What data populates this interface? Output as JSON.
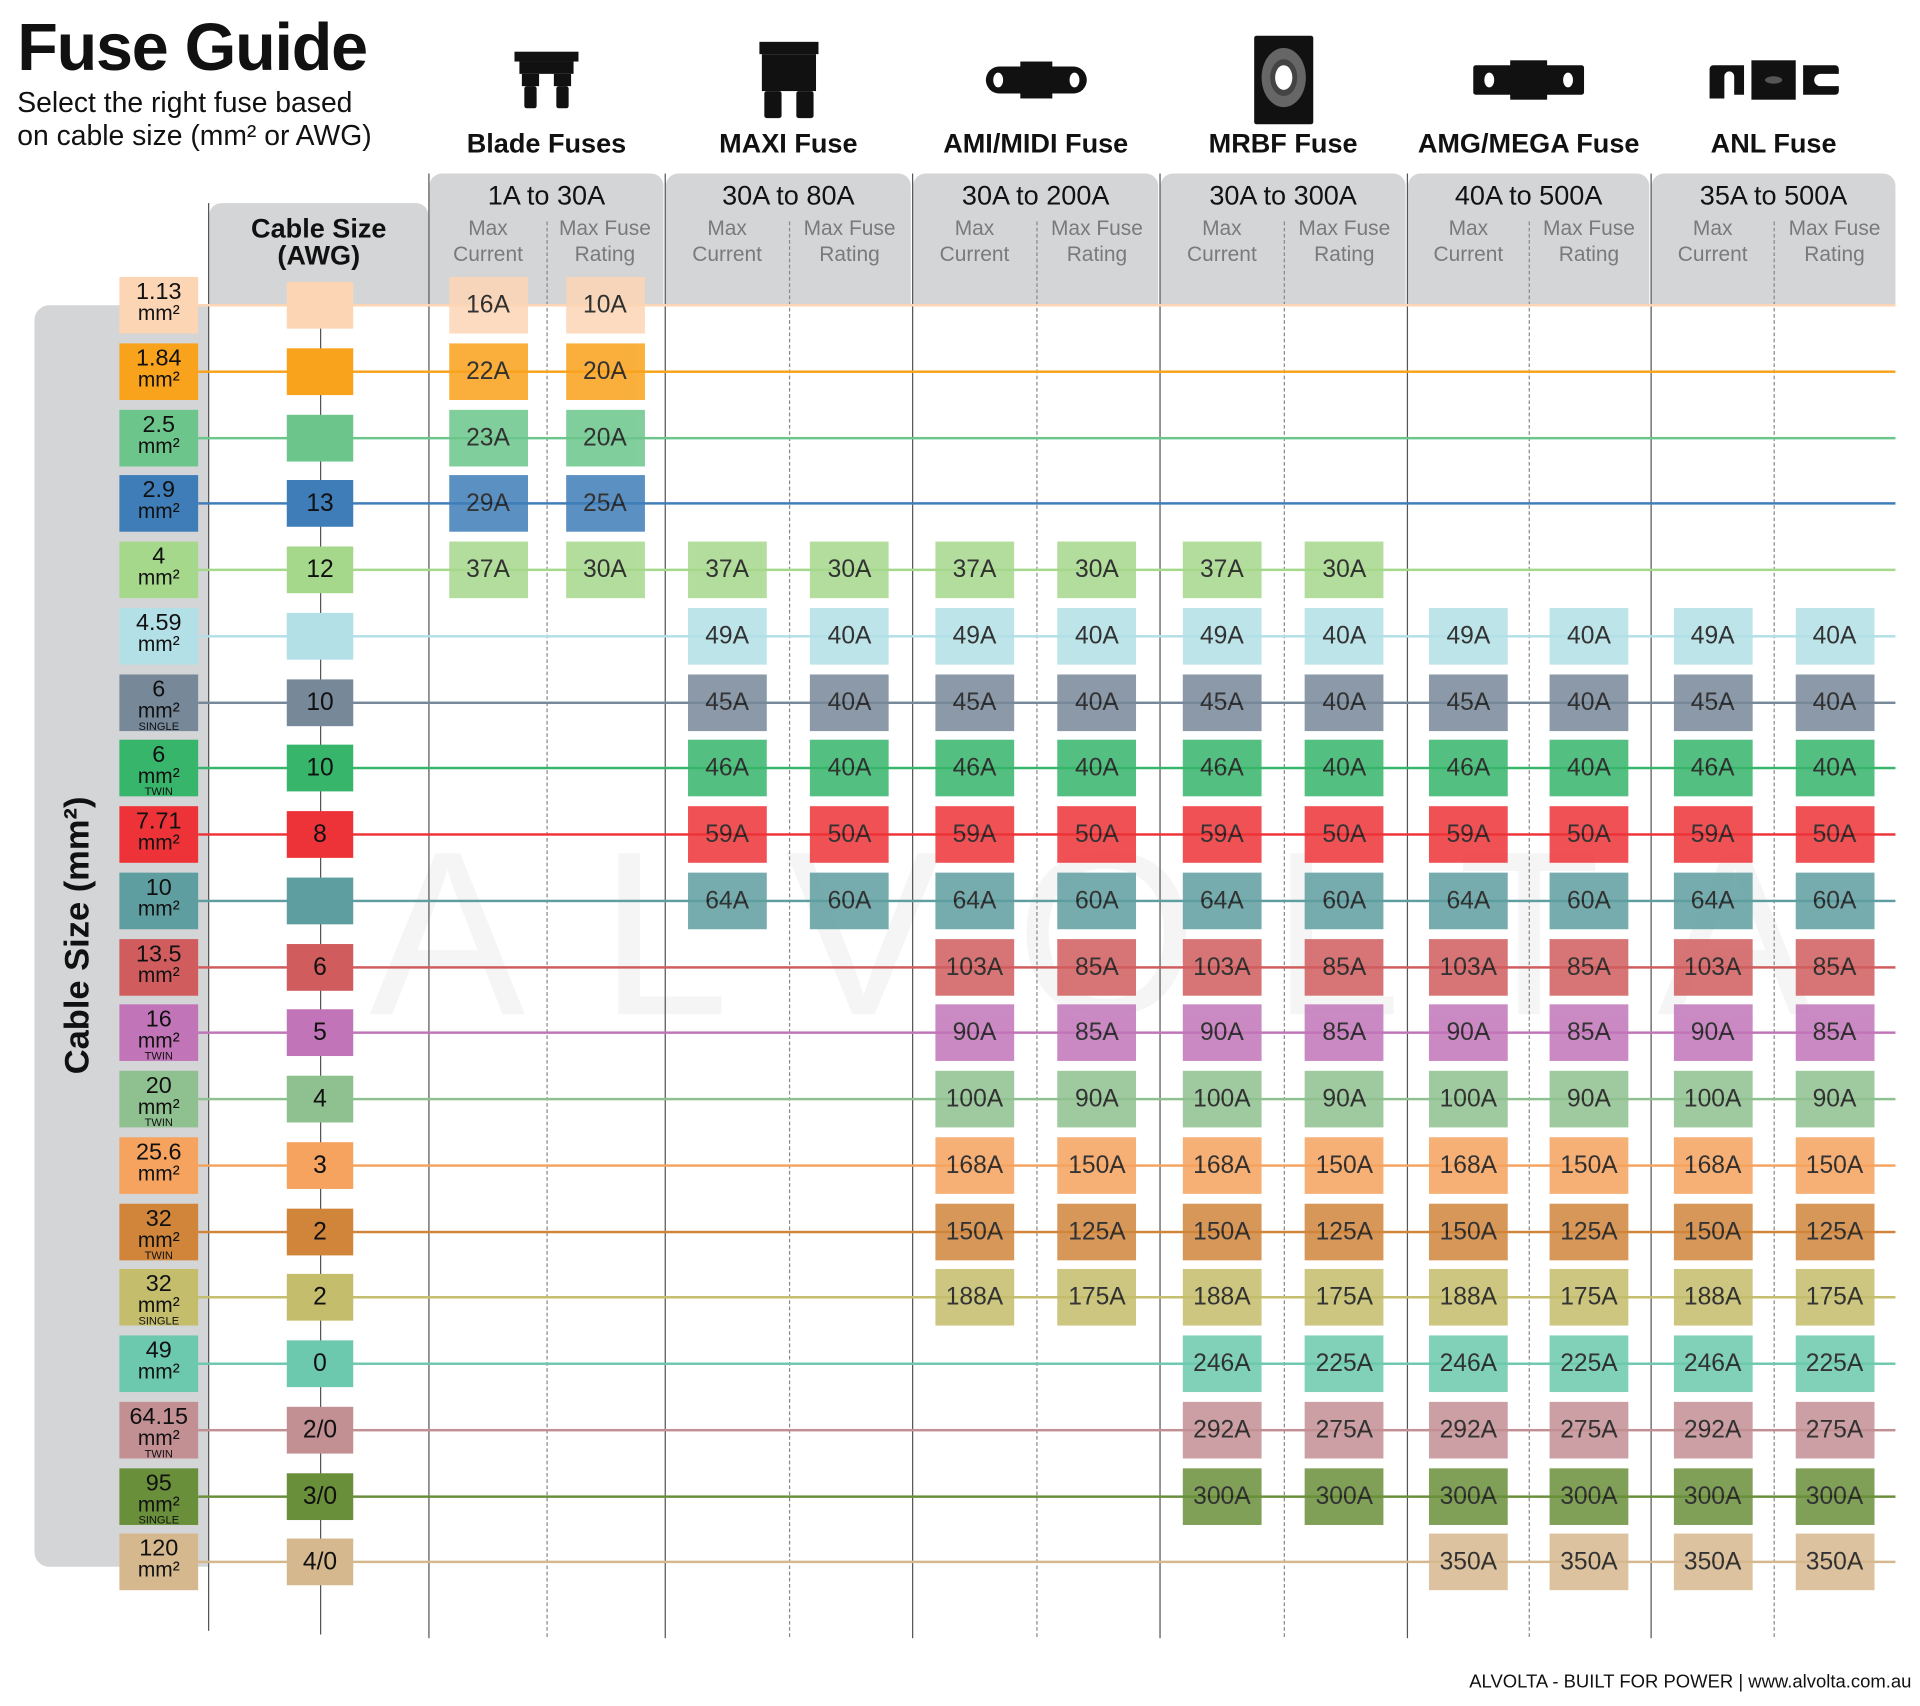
{
  "header": {
    "title": "Fuse Guide",
    "subtitle_line1": "Select the right fuse based",
    "subtitle_line2": "on cable size (mm² or AWG)"
  },
  "watermark": "ALVOLTA",
  "left_axis_label": "Cable Size (mm²)",
  "awg_header": {
    "line1": "Cable Size",
    "line2": "(AWG)"
  },
  "footer": "ALVOLTA - BUILT FOR POWER | www.alvolta.com.au",
  "chart_data": {
    "type": "table",
    "columns": [
      "Max Current",
      "Max Fuse Rating"
    ],
    "column_labels": {
      "current_1": "Max",
      "current_2": "Current",
      "rating_1": "Max Fuse",
      "rating_2": "Rating"
    },
    "groups": [
      {
        "name": "Blade Fuses",
        "range": "1A to 30A",
        "icon": "blade-fuse-icon"
      },
      {
        "name": "MAXI Fuse",
        "range": "30A to 80A",
        "icon": "maxi-fuse-icon"
      },
      {
        "name": "AMI/MIDI Fuse",
        "range": "30A to 200A",
        "icon": "midi-fuse-icon"
      },
      {
        "name": "MRBF Fuse",
        "range": "30A to 300A",
        "icon": "mrbf-fuse-icon"
      },
      {
        "name": "AMG/MEGA Fuse",
        "range": "40A to 500A",
        "icon": "mega-fuse-icon"
      },
      {
        "name": "ANL Fuse",
        "range": "35A to 500A",
        "icon": "anl-fuse-icon"
      }
    ],
    "unit_label": "mm²",
    "rows": [
      {
        "mm": "1.13",
        "note": "",
        "awg": "",
        "color": "#fcd5b5",
        "values": [
          [
            "16A",
            "10A"
          ],
          null,
          null,
          null,
          null,
          null
        ]
      },
      {
        "mm": "1.84",
        "note": "",
        "awg": "",
        "color": "#f9a21b",
        "values": [
          [
            "22A",
            "20A"
          ],
          null,
          null,
          null,
          null,
          null
        ]
      },
      {
        "mm": "2.5",
        "note": "",
        "awg": "",
        "color": "#6cc68c",
        "values": [
          [
            "23A",
            "20A"
          ],
          null,
          null,
          null,
          null,
          null
        ]
      },
      {
        "mm": "2.9",
        "note": "",
        "awg": "13",
        "color": "#3e7db8",
        "values": [
          [
            "29A",
            "25A"
          ],
          null,
          null,
          null,
          null,
          null
        ]
      },
      {
        "mm": "4",
        "note": "",
        "awg": "12",
        "color": "#a6d88c",
        "values": [
          [
            "37A",
            "30A"
          ],
          [
            "37A",
            "30A"
          ],
          [
            "37A",
            "30A"
          ],
          [
            "37A",
            "30A"
          ],
          null,
          null
        ]
      },
      {
        "mm": "4.59",
        "note": "",
        "awg": "",
        "color": "#b2e0e6",
        "values": [
          null,
          [
            "49A",
            "40A"
          ],
          [
            "49A",
            "40A"
          ],
          [
            "49A",
            "40A"
          ],
          [
            "49A",
            "40A"
          ],
          [
            "49A",
            "40A"
          ]
        ]
      },
      {
        "mm": "6",
        "note": "SINGLE",
        "awg": "10",
        "color": "#778899",
        "values": [
          null,
          [
            "45A",
            "40A"
          ],
          [
            "45A",
            "40A"
          ],
          [
            "45A",
            "40A"
          ],
          [
            "45A",
            "40A"
          ],
          [
            "45A",
            "40A"
          ]
        ]
      },
      {
        "mm": "6",
        "note": "TWIN",
        "awg": "10",
        "color": "#36b56b",
        "values": [
          null,
          [
            "46A",
            "40A"
          ],
          [
            "46A",
            "40A"
          ],
          [
            "46A",
            "40A"
          ],
          [
            "46A",
            "40A"
          ],
          [
            "46A",
            "40A"
          ]
        ]
      },
      {
        "mm": "7.71",
        "note": "",
        "awg": "8",
        "color": "#ee3338",
        "values": [
          null,
          [
            "59A",
            "50A"
          ],
          [
            "59A",
            "50A"
          ],
          [
            "59A",
            "50A"
          ],
          [
            "59A",
            "50A"
          ],
          [
            "59A",
            "50A"
          ]
        ]
      },
      {
        "mm": "10",
        "note": "",
        "awg": "",
        "color": "#5f9ea0",
        "values": [
          null,
          [
            "64A",
            "60A"
          ],
          [
            "64A",
            "60A"
          ],
          [
            "64A",
            "60A"
          ],
          [
            "64A",
            "60A"
          ],
          [
            "64A",
            "60A"
          ]
        ]
      },
      {
        "mm": "13.5",
        "note": "",
        "awg": "6",
        "color": "#d05c5d",
        "values": [
          null,
          null,
          [
            "103A",
            "85A"
          ],
          [
            "103A",
            "85A"
          ],
          [
            "103A",
            "85A"
          ],
          [
            "103A",
            "85A"
          ]
        ]
      },
      {
        "mm": "16",
        "note": "TWIN",
        "awg": "5",
        "color": "#c175b8",
        "values": [
          null,
          null,
          [
            "90A",
            "85A"
          ],
          [
            "90A",
            "85A"
          ],
          [
            "90A",
            "85A"
          ],
          [
            "90A",
            "85A"
          ]
        ]
      },
      {
        "mm": "20",
        "note": "TWIN",
        "awg": "4",
        "color": "#8fc08f",
        "values": [
          null,
          null,
          [
            "100A",
            "90A"
          ],
          [
            "100A",
            "90A"
          ],
          [
            "100A",
            "90A"
          ],
          [
            "100A",
            "90A"
          ]
        ]
      },
      {
        "mm": "25.6",
        "note": "",
        "awg": "3",
        "color": "#f5a35f",
        "values": [
          null,
          null,
          [
            "168A",
            "150A"
          ],
          [
            "168A",
            "150A"
          ],
          [
            "168A",
            "150A"
          ],
          [
            "168A",
            "150A"
          ]
        ]
      },
      {
        "mm": "32",
        "note": "TWIN",
        "awg": "2",
        "color": "#d0853b",
        "values": [
          null,
          null,
          [
            "150A",
            "125A"
          ],
          [
            "150A",
            "125A"
          ],
          [
            "150A",
            "125A"
          ],
          [
            "150A",
            "125A"
          ]
        ]
      },
      {
        "mm": "32",
        "note": "SINGLE",
        "awg": "2",
        "color": "#c4bd6c",
        "values": [
          null,
          null,
          [
            "188A",
            "175A"
          ],
          [
            "188A",
            "175A"
          ],
          [
            "188A",
            "175A"
          ],
          [
            "188A",
            "175A"
          ]
        ]
      },
      {
        "mm": "49",
        "note": "",
        "awg": "0",
        "color": "#6cc9ad",
        "values": [
          null,
          null,
          null,
          [
            "246A",
            "225A"
          ],
          [
            "246A",
            "225A"
          ],
          [
            "246A",
            "225A"
          ]
        ]
      },
      {
        "mm": "64.15",
        "note": "TWIN",
        "awg": "2/0",
        "color": "#c28f93",
        "values": [
          null,
          null,
          null,
          [
            "292A",
            "275A"
          ],
          [
            "292A",
            "275A"
          ],
          [
            "292A",
            "275A"
          ]
        ]
      },
      {
        "mm": "95",
        "note": "SINGLE",
        "awg": "3/0",
        "color": "#6a8f3a",
        "values": [
          null,
          null,
          null,
          [
            "300A",
            "300A"
          ],
          [
            "300A",
            "300A"
          ],
          [
            "300A",
            "300A"
          ]
        ]
      },
      {
        "mm": "120",
        "note": "",
        "awg": "4/0",
        "color": "#d6b88f",
        "values": [
          null,
          null,
          null,
          null,
          [
            "350A",
            "350A"
          ],
          [
            "350A",
            "350A"
          ]
        ]
      }
    ]
  }
}
